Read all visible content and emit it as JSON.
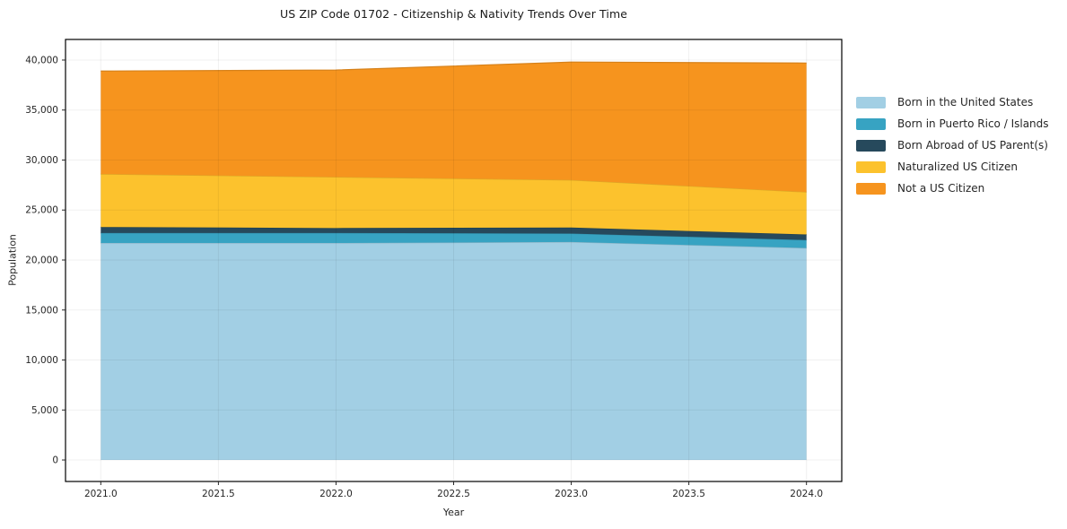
{
  "title": "US ZIP Code 01702 - Citizenship & Nativity Trends Over Time",
  "chart_data": {
    "type": "area",
    "stacked": true,
    "title": "US ZIP Code 01702 - Citizenship & Nativity Trends Over Time",
    "xlabel": "Year",
    "ylabel": "Population",
    "x": [
      2021,
      2022,
      2023,
      2024
    ],
    "series": [
      {
        "name": "Born in the United States",
        "color": "#a2cfe4",
        "values": [
          21700,
          21700,
          21800,
          21200
        ]
      },
      {
        "name": "Born in Puerto Rico / Islands",
        "color": "#37a3c2",
        "values": [
          1000,
          1000,
          850,
          800
        ]
      },
      {
        "name": "Born Abroad of US Parent(s)",
        "color": "#26495c",
        "values": [
          600,
          500,
          600,
          550
        ]
      },
      {
        "name": "Naturalized US Citizen",
        "color": "#fcc22d",
        "values": [
          5300,
          5100,
          4750,
          4250
        ]
      },
      {
        "name": "Not a US Citizen",
        "color": "#f6941e",
        "values": [
          10300,
          10700,
          11800,
          12900
        ]
      }
    ],
    "totals": [
      38900,
      39000,
      39800,
      39700
    ],
    "x_ticks": [
      "2021.0",
      "2021.5",
      "2022.0",
      "2022.5",
      "2023.0",
      "2023.5",
      "2024.0"
    ],
    "x_tick_values": [
      2021.0,
      2021.5,
      2022.0,
      2022.5,
      2023.0,
      2023.5,
      2024.0
    ],
    "y_ticks": [
      "0",
      "5,000",
      "10,000",
      "15,000",
      "20,000",
      "25,000",
      "30,000",
      "35,000",
      "40,000"
    ],
    "y_tick_values": [
      0,
      5000,
      10000,
      15000,
      20000,
      25000,
      30000,
      35000,
      40000
    ],
    "xlim": [
      2020.85,
      2024.15
    ],
    "ylim": [
      -2150,
      42060
    ],
    "grid": true,
    "legend_position": "right"
  }
}
